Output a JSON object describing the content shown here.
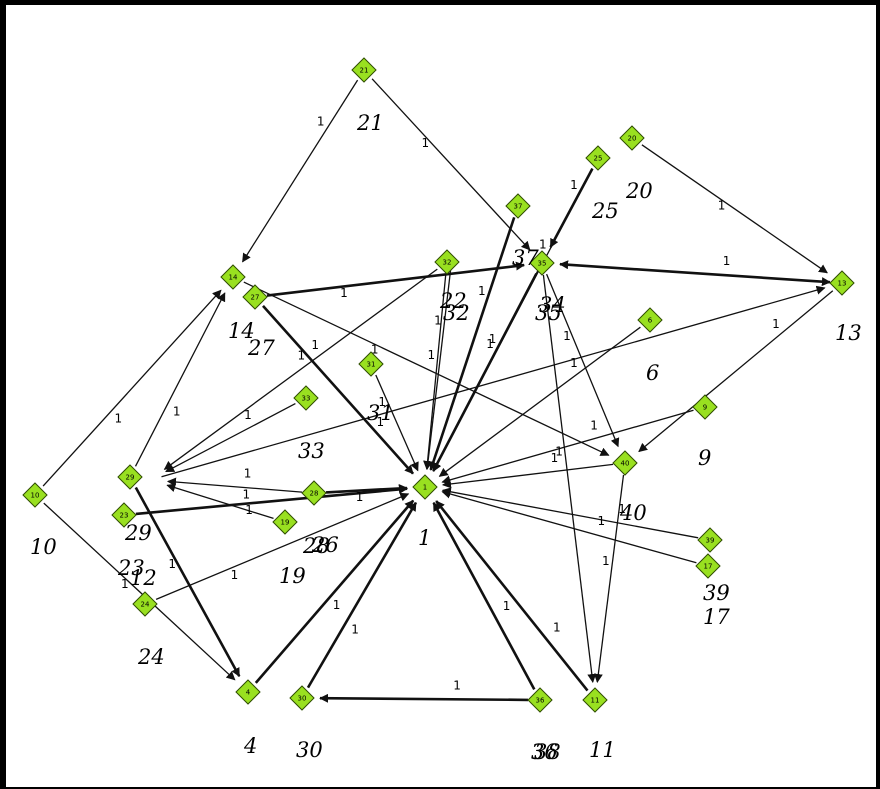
{
  "diagram": {
    "type": "directed-graph",
    "node_color": "#99e020",
    "edge_color": "#111111",
    "nodes": [
      {
        "id": "1",
        "label": "1"
      },
      {
        "id": "4",
        "label": "4"
      },
      {
        "id": "6",
        "label": "6"
      },
      {
        "id": "9",
        "label": "9"
      },
      {
        "id": "10",
        "label": "10"
      },
      {
        "id": "11",
        "label": "11"
      },
      {
        "id": "12",
        "label": "12"
      },
      {
        "id": "13",
        "label": "13"
      },
      {
        "id": "14",
        "label": "14"
      },
      {
        "id": "17",
        "label": "17"
      },
      {
        "id": "19",
        "label": "19"
      },
      {
        "id": "20",
        "label": "20"
      },
      {
        "id": "21",
        "label": "21"
      },
      {
        "id": "22",
        "label": "22"
      },
      {
        "id": "23",
        "label": "23"
      },
      {
        "id": "24",
        "label": "24"
      },
      {
        "id": "25",
        "label": "25"
      },
      {
        "id": "26",
        "label": "26"
      },
      {
        "id": "27",
        "label": "27"
      },
      {
        "id": "28",
        "label": "28"
      },
      {
        "id": "29",
        "label": "29"
      },
      {
        "id": "30",
        "label": "30"
      },
      {
        "id": "31",
        "label": "31"
      },
      {
        "id": "32",
        "label": "32"
      },
      {
        "id": "33",
        "label": "33"
      },
      {
        "id": "34",
        "label": "34"
      },
      {
        "id": "35",
        "label": "35"
      },
      {
        "id": "36",
        "label": "36"
      },
      {
        "id": "37",
        "label": "37"
      },
      {
        "id": "38",
        "label": "38"
      },
      {
        "id": "39",
        "label": "39"
      },
      {
        "id": "40",
        "label": "40"
      }
    ],
    "edges": [
      {
        "from": "21",
        "to": "14",
        "weight": "1"
      },
      {
        "from": "21",
        "to": "35",
        "weight": "1"
      },
      {
        "from": "20",
        "to": "13",
        "weight": "1"
      },
      {
        "from": "25",
        "to": "35",
        "weight": "1"
      },
      {
        "from": "13",
        "to": "35",
        "weight": "1",
        "bidirectional": true
      },
      {
        "from": "27",
        "to": "35",
        "weight": "1"
      },
      {
        "from": "10",
        "to": "14",
        "weight": "1"
      },
      {
        "from": "10",
        "to": "4",
        "weight": "1"
      },
      {
        "from": "29",
        "to": "14",
        "weight": "1"
      },
      {
        "from": "29",
        "to": "4",
        "weight": "1"
      },
      {
        "from": "27",
        "to": "1",
        "weight": "1"
      },
      {
        "from": "14",
        "to": "40",
        "weight": "1"
      },
      {
        "from": "32",
        "to": "1",
        "weight": "1"
      },
      {
        "from": "37",
        "to": "1",
        "weight": "1"
      },
      {
        "from": "35",
        "to": "1",
        "weight": "1"
      },
      {
        "from": "25",
        "to": "1",
        "weight": "1"
      },
      {
        "from": "35",
        "to": "40",
        "weight": "1"
      },
      {
        "from": "35",
        "to": "11",
        "weight": "1"
      },
      {
        "from": "6",
        "to": "1",
        "weight": "1"
      },
      {
        "from": "9",
        "to": "1",
        "weight": "1"
      },
      {
        "from": "13",
        "to": "40",
        "weight": "1"
      },
      {
        "from": "40",
        "to": "1",
        "weight": "1"
      },
      {
        "from": "40",
        "to": "11",
        "weight": "1"
      },
      {
        "from": "39",
        "to": "1",
        "weight": "1"
      },
      {
        "from": "17",
        "to": "1",
        "weight": "1"
      },
      {
        "from": "31",
        "to": "1",
        "weight": "1"
      },
      {
        "from": "28",
        "to": "1",
        "weight": "1"
      },
      {
        "from": "28",
        "to": "12",
        "weight": "1"
      },
      {
        "from": "19",
        "to": "12",
        "weight": "1"
      },
      {
        "from": "23",
        "to": "1",
        "weight": "1"
      },
      {
        "from": "24",
        "to": "1",
        "weight": "1"
      },
      {
        "from": "33",
        "to": "12",
        "weight": "1"
      },
      {
        "from": "4",
        "to": "1",
        "weight": "1"
      },
      {
        "from": "30",
        "to": "1",
        "weight": "1"
      },
      {
        "from": "36",
        "to": "1",
        "weight": "1"
      },
      {
        "from": "11",
        "to": "1",
        "weight": "1"
      },
      {
        "from": "36",
        "to": "30",
        "weight": "1"
      },
      {
        "from": "32",
        "to": "12",
        "weight": "1"
      },
      {
        "from": "12",
        "to": "13",
        "weight": "1"
      },
      {
        "from": "34",
        "to": "1",
        "weight": "1"
      },
      {
        "from": "22",
        "to": "1",
        "weight": "1"
      }
    ]
  }
}
